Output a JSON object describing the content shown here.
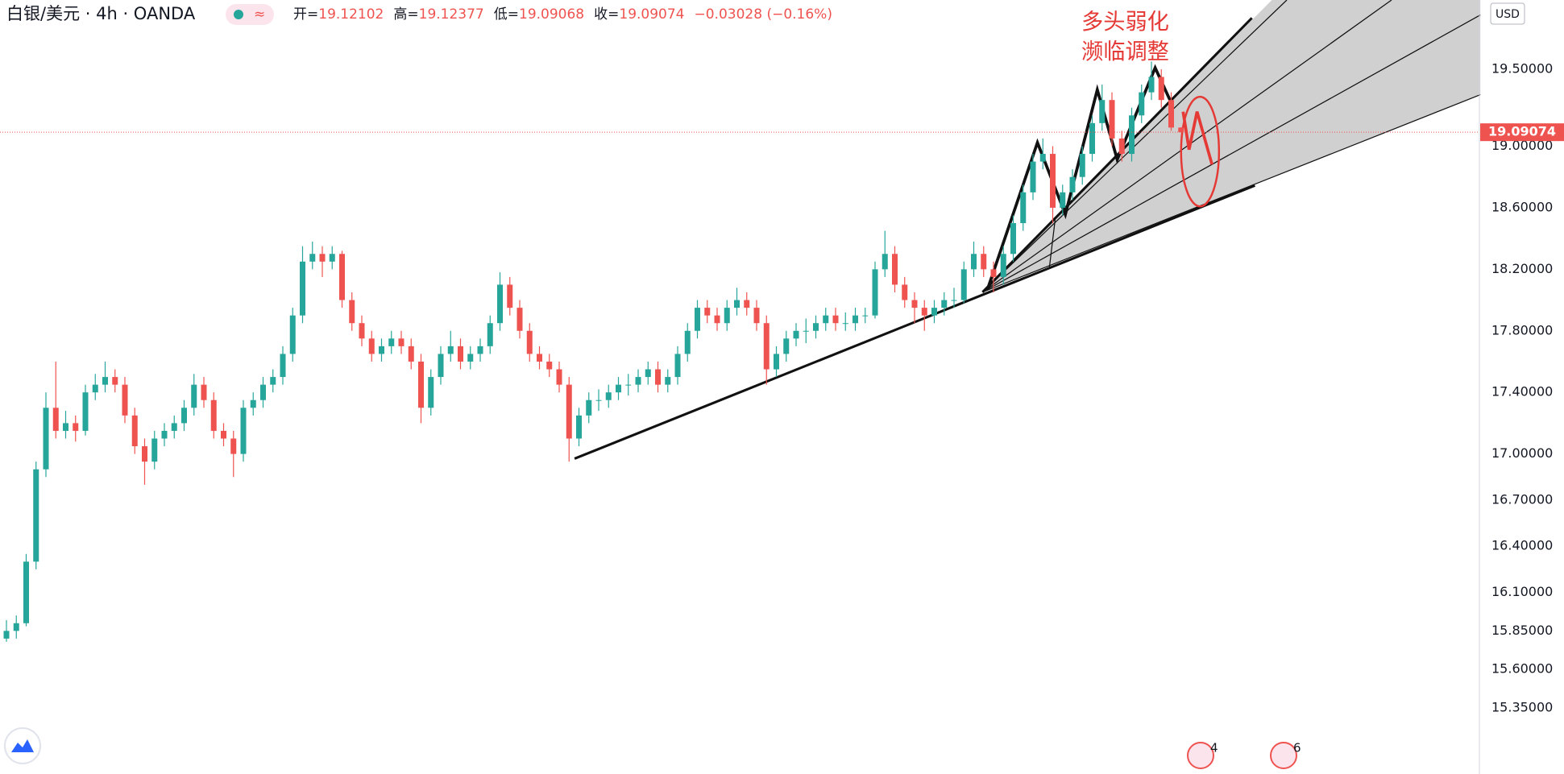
{
  "chart_data": {
    "type": "candlestick",
    "symbol": "白银/美元 · 4h · OANDA",
    "ohlc_labels": [
      "开=",
      "高=",
      "低=",
      "收="
    ],
    "change": "−0.03028 (−0.16%)",
    "currency": "USD",
    "annotation": [
      "多头弱化",
      "濒临调整"
    ],
    "events": [
      "4",
      "6"
    ],
    "up_color": "#26a69a",
    "down_color": "#ef5350",
    "ylim": [
      14.92,
      19.95
    ],
    "yticks": [
      {
        "value": 15.35,
        "label": "15.35000"
      },
      {
        "value": 15.6,
        "label": "15.60000"
      },
      {
        "value": 15.85,
        "label": "15.85000"
      },
      {
        "value": 16.1,
        "label": "16.10000"
      },
      {
        "value": 16.4,
        "label": "16.40000"
      },
      {
        "value": 16.7,
        "label": "16.70000"
      },
      {
        "value": 17.0,
        "label": "17.00000"
      },
      {
        "value": 17.4,
        "label": "17.40000"
      },
      {
        "value": 17.8,
        "label": "17.80000"
      },
      {
        "value": 18.2,
        "label": "18.20000"
      },
      {
        "value": 18.6,
        "label": "18.60000"
      },
      {
        "value": 19.0,
        "label": "19.00000"
      },
      {
        "value": 19.5,
        "label": "19.50000"
      }
    ],
    "candles": [
      [
        15.8,
        15.92,
        15.78,
        15.85
      ],
      [
        15.85,
        15.95,
        15.8,
        15.9
      ],
      [
        15.9,
        16.35,
        15.88,
        16.3
      ],
      [
        16.3,
        16.95,
        16.25,
        16.9
      ],
      [
        16.9,
        17.4,
        16.85,
        17.3
      ],
      [
        17.3,
        17.6,
        17.1,
        17.15
      ],
      [
        17.15,
        17.28,
        17.1,
        17.2
      ],
      [
        17.2,
        17.25,
        17.08,
        17.15
      ],
      [
        17.15,
        17.45,
        17.12,
        17.4
      ],
      [
        17.4,
        17.52,
        17.35,
        17.45
      ],
      [
        17.45,
        17.6,
        17.4,
        17.5
      ],
      [
        17.5,
        17.55,
        17.4,
        17.45
      ],
      [
        17.45,
        17.5,
        17.2,
        17.25
      ],
      [
        17.25,
        17.3,
        17.0,
        17.05
      ],
      [
        17.05,
        17.1,
        16.8,
        16.95
      ],
      [
        16.95,
        17.15,
        16.9,
        17.1
      ],
      [
        17.1,
        17.2,
        17.05,
        17.15
      ],
      [
        17.15,
        17.25,
        17.1,
        17.2
      ],
      [
        17.2,
        17.35,
        17.15,
        17.3
      ],
      [
        17.3,
        17.52,
        17.25,
        17.45
      ],
      [
        17.45,
        17.5,
        17.3,
        17.35
      ],
      [
        17.35,
        17.4,
        17.1,
        17.15
      ],
      [
        17.15,
        17.2,
        17.05,
        17.1
      ],
      [
        17.1,
        17.15,
        16.85,
        17.0
      ],
      [
        17.0,
        17.35,
        16.95,
        17.3
      ],
      [
        17.3,
        17.4,
        17.25,
        17.35
      ],
      [
        17.35,
        17.5,
        17.3,
        17.45
      ],
      [
        17.45,
        17.55,
        17.4,
        17.5
      ],
      [
        17.5,
        17.7,
        17.45,
        17.65
      ],
      [
        17.65,
        17.95,
        17.6,
        17.9
      ],
      [
        17.9,
        18.35,
        17.85,
        18.25
      ],
      [
        18.25,
        18.38,
        18.2,
        18.3
      ],
      [
        18.3,
        18.35,
        18.15,
        18.25
      ],
      [
        18.25,
        18.35,
        18.2,
        18.3
      ],
      [
        18.3,
        18.32,
        17.95,
        18.0
      ],
      [
        18.0,
        18.05,
        17.8,
        17.85
      ],
      [
        17.85,
        17.9,
        17.7,
        17.75
      ],
      [
        17.75,
        17.8,
        17.6,
        17.65
      ],
      [
        17.65,
        17.75,
        17.6,
        17.7
      ],
      [
        17.7,
        17.8,
        17.65,
        17.75
      ],
      [
        17.75,
        17.8,
        17.65,
        17.7
      ],
      [
        17.7,
        17.75,
        17.55,
        17.6
      ],
      [
        17.6,
        17.65,
        17.2,
        17.3
      ],
      [
        17.3,
        17.55,
        17.25,
        17.5
      ],
      [
        17.5,
        17.7,
        17.45,
        17.65
      ],
      [
        17.65,
        17.8,
        17.6,
        17.7
      ],
      [
        17.7,
        17.75,
        17.55,
        17.6
      ],
      [
        17.6,
        17.7,
        17.55,
        17.65
      ],
      [
        17.65,
        17.75,
        17.6,
        17.7
      ],
      [
        17.7,
        17.9,
        17.65,
        17.85
      ],
      [
        17.85,
        18.18,
        17.8,
        18.1
      ],
      [
        18.1,
        18.15,
        17.9,
        17.95
      ],
      [
        17.95,
        18.0,
        17.75,
        17.8
      ],
      [
        17.8,
        17.85,
        17.6,
        17.65
      ],
      [
        17.65,
        17.7,
        17.55,
        17.6
      ],
      [
        17.6,
        17.65,
        17.5,
        17.55
      ],
      [
        17.55,
        17.6,
        17.4,
        17.45
      ],
      [
        17.45,
        17.5,
        16.95,
        17.1
      ],
      [
        17.1,
        17.3,
        17.05,
        17.25
      ],
      [
        17.25,
        17.4,
        17.2,
        17.35
      ],
      [
        17.35,
        17.42,
        17.28,
        17.35
      ],
      [
        17.35,
        17.45,
        17.3,
        17.4
      ],
      [
        17.4,
        17.5,
        17.35,
        17.45
      ],
      [
        17.45,
        17.52,
        17.38,
        17.45
      ],
      [
        17.45,
        17.55,
        17.4,
        17.5
      ],
      [
        17.5,
        17.6,
        17.45,
        17.55
      ],
      [
        17.55,
        17.6,
        17.4,
        17.45
      ],
      [
        17.45,
        17.55,
        17.4,
        17.5
      ],
      [
        17.5,
        17.7,
        17.45,
        17.65
      ],
      [
        17.65,
        17.85,
        17.6,
        17.8
      ],
      [
        17.8,
        18.0,
        17.75,
        17.95
      ],
      [
        17.95,
        18.0,
        17.85,
        17.9
      ],
      [
        17.9,
        17.95,
        17.8,
        17.85
      ],
      [
        17.85,
        18.0,
        17.8,
        17.95
      ],
      [
        17.95,
        18.08,
        17.9,
        18.0
      ],
      [
        18.0,
        18.05,
        17.9,
        17.95
      ],
      [
        17.95,
        18.0,
        17.8,
        17.85
      ],
      [
        17.85,
        17.9,
        17.45,
        17.55
      ],
      [
        17.55,
        17.7,
        17.5,
        17.65
      ],
      [
        17.65,
        17.8,
        17.6,
        17.75
      ],
      [
        17.75,
        17.85,
        17.7,
        17.8
      ],
      [
        17.8,
        17.88,
        17.72,
        17.8
      ],
      [
        17.8,
        17.9,
        17.75,
        17.85
      ],
      [
        17.85,
        17.95,
        17.8,
        17.9
      ],
      [
        17.9,
        17.95,
        17.8,
        17.85
      ],
      [
        17.85,
        17.92,
        17.8,
        17.85
      ],
      [
        17.85,
        17.95,
        17.8,
        17.9
      ],
      [
        17.9,
        17.95,
        17.85,
        17.9
      ],
      [
        17.9,
        18.25,
        17.88,
        18.2
      ],
      [
        18.2,
        18.45,
        18.15,
        18.3
      ],
      [
        18.3,
        18.35,
        18.05,
        18.1
      ],
      [
        18.1,
        18.15,
        17.95,
        18.0
      ],
      [
        18.0,
        18.05,
        17.85,
        17.95
      ],
      [
        17.95,
        18.0,
        17.8,
        17.9
      ],
      [
        17.9,
        18.0,
        17.85,
        17.95
      ],
      [
        17.95,
        18.05,
        17.9,
        18.0
      ],
      [
        18.0,
        18.08,
        17.95,
        18.0
      ],
      [
        18.0,
        18.25,
        17.98,
        18.2
      ],
      [
        18.2,
        18.38,
        18.15,
        18.3
      ],
      [
        18.3,
        18.35,
        18.15,
        18.2
      ],
      [
        18.2,
        18.25,
        18.05,
        18.15
      ],
      [
        18.15,
        18.35,
        18.1,
        18.3
      ],
      [
        18.3,
        18.55,
        18.25,
        18.5
      ],
      [
        18.5,
        18.75,
        18.45,
        18.7
      ],
      [
        18.7,
        18.95,
        18.65,
        18.9
      ],
      [
        18.9,
        19.05,
        18.85,
        18.95
      ],
      [
        18.95,
        19.0,
        18.5,
        18.6
      ],
      [
        18.6,
        18.75,
        18.55,
        18.7
      ],
      [
        18.7,
        18.85,
        18.65,
        18.8
      ],
      [
        18.8,
        19.0,
        18.75,
        18.95
      ],
      [
        18.95,
        19.2,
        18.9,
        19.15
      ],
      [
        19.15,
        19.4,
        19.1,
        19.3
      ],
      [
        19.3,
        19.35,
        19.0,
        19.05
      ],
      [
        19.05,
        19.1,
        18.9,
        18.95
      ],
      [
        18.95,
        19.25,
        18.9,
        19.2
      ],
      [
        19.2,
        19.4,
        19.15,
        19.35
      ],
      [
        19.35,
        19.55,
        19.3,
        19.45
      ],
      [
        19.45,
        19.5,
        19.25,
        19.3
      ],
      [
        19.3,
        19.35,
        19.1,
        19.12102
      ],
      [
        19.12102,
        19.12377,
        19.09068,
        19.09074
      ]
    ]
  }
}
